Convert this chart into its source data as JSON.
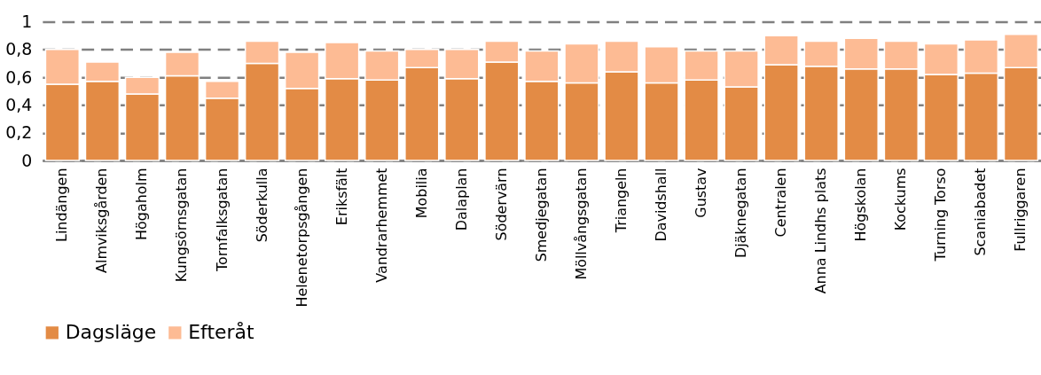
{
  "chart_data": {
    "type": "bar",
    "stacked": true,
    "categories": [
      "Lindängen",
      "Almviksgården",
      "Högaholm",
      "Kungsörnsgatan",
      "Tornfalksgatan",
      "Söderkulla",
      "Helenetorpsgången",
      "Eriksfält",
      "Vandrarhemmet",
      "Mobilia",
      "Dalaplan",
      "Södervärn",
      "Smedjegatan",
      "Möllvångsgatan",
      "Triangeln",
      "Davidshall",
      "Gustav",
      "Djäknegatan",
      "Centralen",
      "Anna Lindhs plats",
      "Högskolan",
      "Kockums",
      "Turning Torso",
      "Scaniabadet",
      "Fullriggaren"
    ],
    "series": [
      {
        "name": "Dagsläge",
        "color": "#e38b45",
        "values": [
          0.55,
          0.57,
          0.48,
          0.61,
          0.45,
          0.7,
          0.52,
          0.59,
          0.58,
          0.67,
          0.59,
          0.71,
          0.57,
          0.56,
          0.64,
          0.56,
          0.58,
          0.53,
          0.69,
          0.68,
          0.66,
          0.66,
          0.62,
          0.63,
          0.67
        ]
      },
      {
        "name": "Efteråt",
        "color": "#fdbb94",
        "values": [
          0.25,
          0.14,
          0.12,
          0.17,
          0.12,
          0.16,
          0.26,
          0.26,
          0.21,
          0.13,
          0.21,
          0.15,
          0.22,
          0.28,
          0.22,
          0.26,
          0.21,
          0.26,
          0.21,
          0.18,
          0.22,
          0.2,
          0.22,
          0.24,
          0.24
        ]
      }
    ],
    "ylim": [
      0,
      1
    ],
    "yticks": [
      0,
      {
        "value": 0.2,
        "label": "0,2"
      },
      {
        "value": 0.4,
        "label": "0,4"
      },
      {
        "value": 0.6,
        "label": "0,6"
      },
      {
        "value": 0.8,
        "label": "0,8"
      },
      1
    ],
    "grid": "y",
    "legend": "bottom"
  }
}
